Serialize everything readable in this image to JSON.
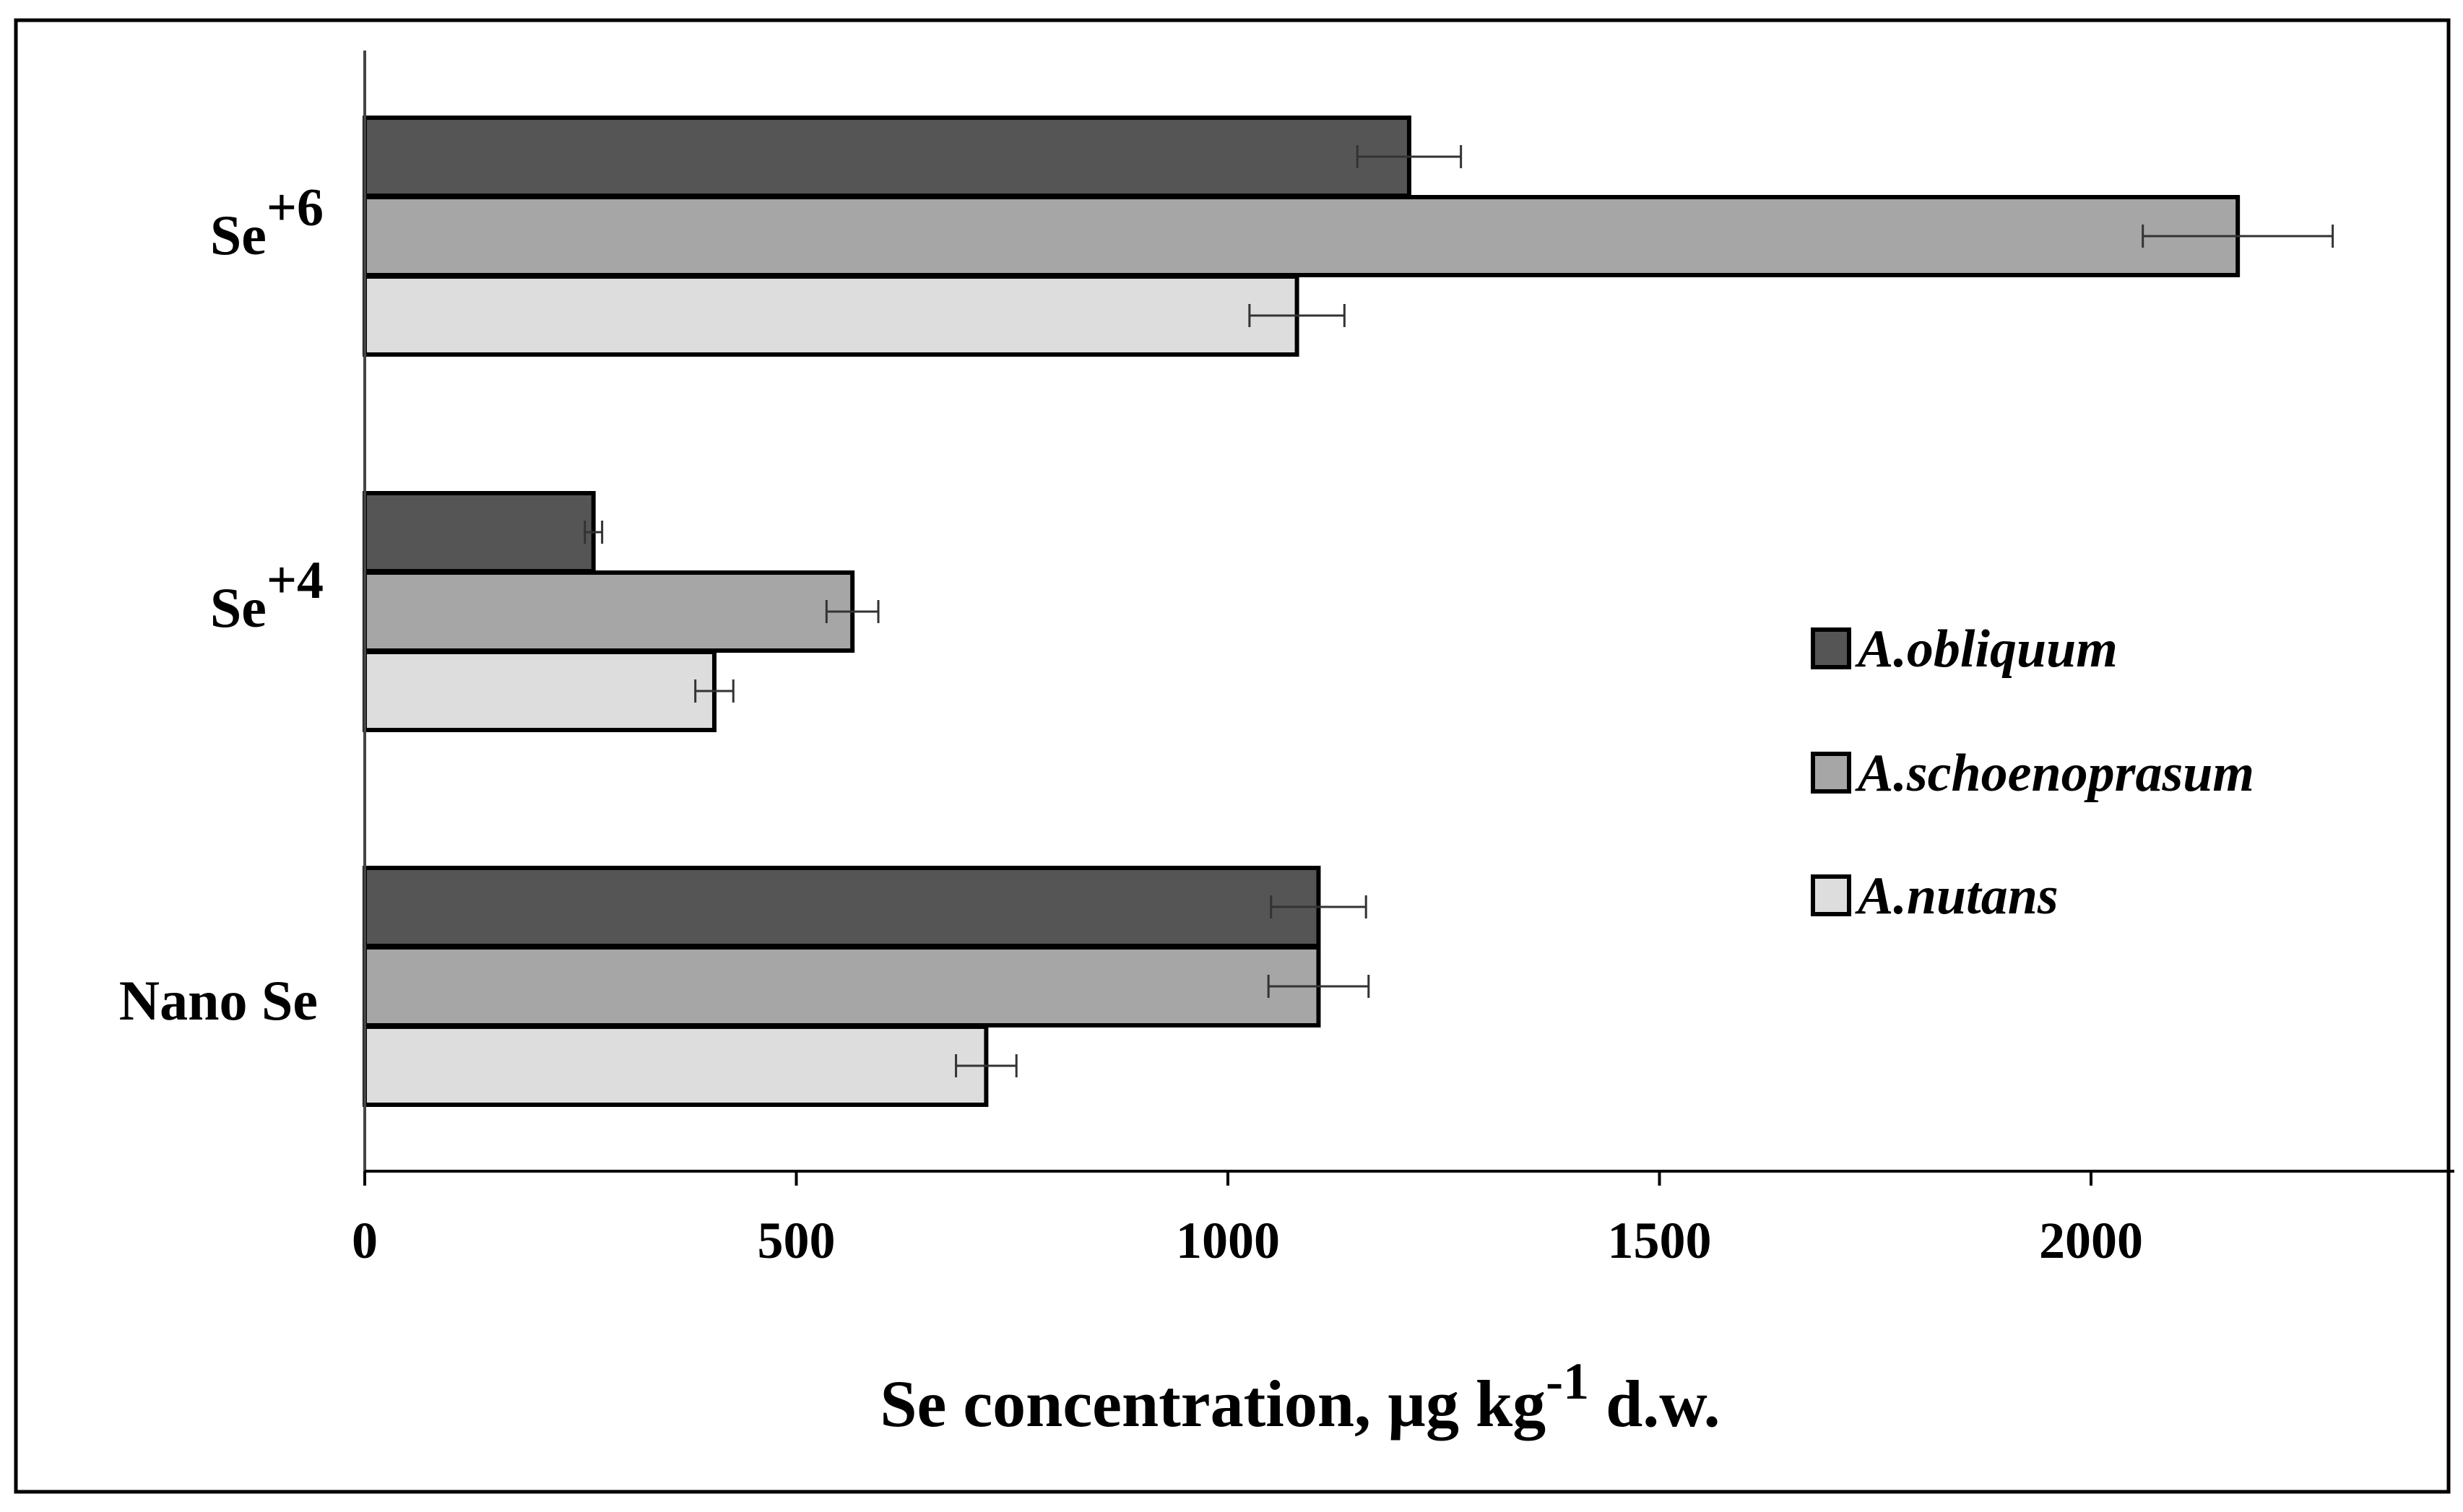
{
  "chart_data": {
    "type": "bar",
    "orientation": "horizontal",
    "categories": [
      "Se+6",
      "Se+4",
      "Nano Se"
    ],
    "category_labels": [
      {
        "base": "Se",
        "sup": "+6"
      },
      {
        "base": "Se",
        "sup": "+4"
      },
      {
        "base": "Nano Se",
        "sup": ""
      }
    ],
    "series": [
      {
        "name": "A.obliquum",
        "color": "#555555",
        "values": [
          1210,
          265,
          1105
        ],
        "errors": [
          60,
          10,
          55
        ]
      },
      {
        "name": "A.schoenoprasum",
        "color": "#a6a6a6",
        "values": [
          2170,
          565,
          1105
        ],
        "errors": [
          110,
          30,
          58
        ]
      },
      {
        "name": "A.nutans",
        "color": "#dddddd",
        "values": [
          1080,
          405,
          720
        ],
        "errors": [
          55,
          22,
          35
        ]
      }
    ],
    "xlim": [
      0,
      2400
    ],
    "xticks": [
      "0",
      "500",
      "1000",
      "1500",
      "2000"
    ],
    "xtick_values": [
      0,
      500,
      1000,
      1500,
      2000
    ],
    "xlabel": {
      "main": "Se concentration,  µg kg",
      "sup": "-1",
      "tail": " d.w."
    },
    "legend_position": "center-right",
    "grid": false
  }
}
